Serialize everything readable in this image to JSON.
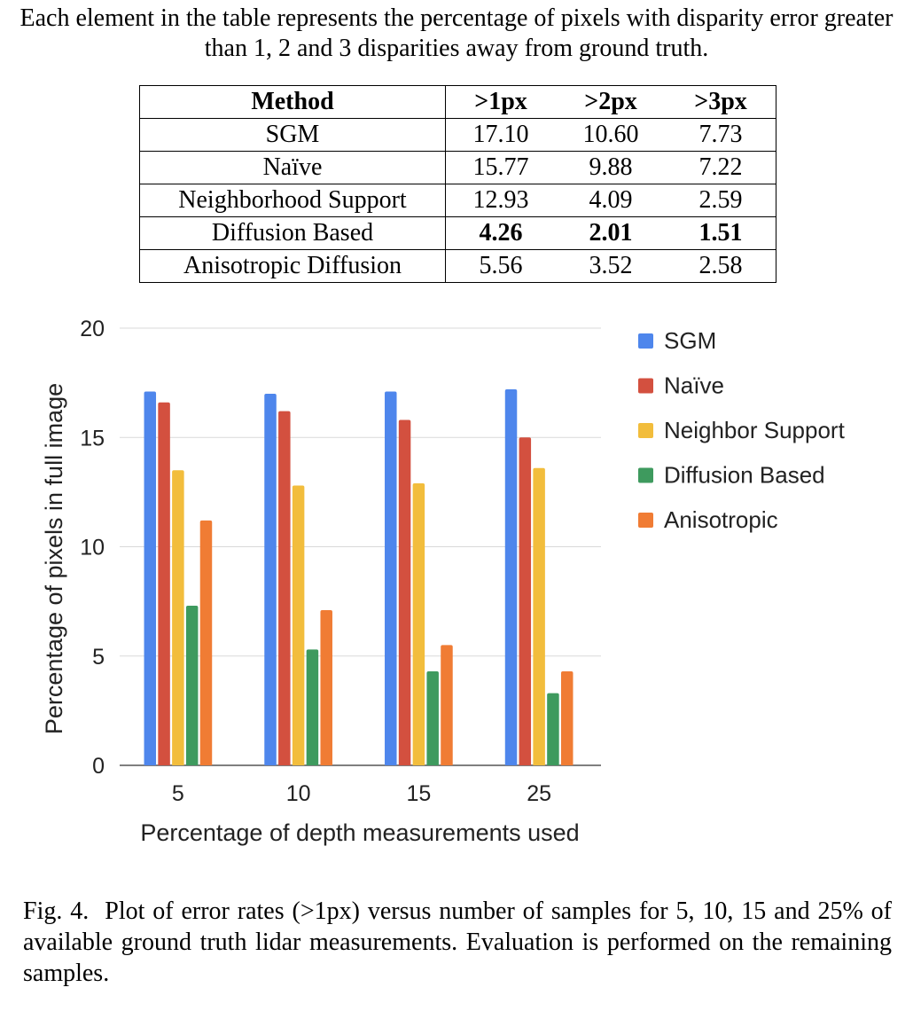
{
  "intro": "Each element in the table represents the percentage of pixels with disparity error greater than 1, 2 and 3 disparities away from ground truth.",
  "table": {
    "headers": [
      "Method",
      ">1px",
      ">2px",
      ">3px"
    ],
    "rows": [
      {
        "method": "SGM",
        "v1": "17.10",
        "v2": "10.60",
        "v3": "7.73",
        "bold": false
      },
      {
        "method": "Naïve",
        "v1": "15.77",
        "v2": "9.88",
        "v3": "7.22",
        "bold": false
      },
      {
        "method": "Neighborhood Support",
        "v1": "12.93",
        "v2": "4.09",
        "v3": "2.59",
        "bold": false
      },
      {
        "method": "Diffusion Based",
        "v1": "4.26",
        "v2": "2.01",
        "v3": "1.51",
        "bold": true
      },
      {
        "method": "Anisotropic Diffusion",
        "v1": "5.56",
        "v2": "3.52",
        "v3": "2.58",
        "bold": false
      }
    ]
  },
  "chart_data": {
    "type": "bar",
    "categories": [
      "5",
      "10",
      "15",
      "25"
    ],
    "series": [
      {
        "name": "SGM",
        "color": "#4e86ec",
        "values": [
          17.1,
          17.0,
          17.1,
          17.2
        ]
      },
      {
        "name": "Naïve",
        "color": "#d3503f",
        "values": [
          16.6,
          16.2,
          15.8,
          15.0
        ]
      },
      {
        "name": "Neighbor Support",
        "color": "#f2bd3c",
        "values": [
          13.5,
          12.8,
          12.9,
          13.6
        ]
      },
      {
        "name": "Diffusion Based",
        "color": "#3e9a5e",
        "values": [
          7.3,
          5.3,
          4.3,
          3.3
        ]
      },
      {
        "name": "Anisotropic",
        "color": "#f07c34",
        "values": [
          11.2,
          7.1,
          5.5,
          4.3
        ]
      }
    ],
    "xlabel": "Percentage of depth measurements used",
    "ylabel": "Percentage of pixels in full image",
    "ylim": [
      0,
      20
    ],
    "yticks": [
      0,
      5,
      10,
      15,
      20
    ],
    "grid": true,
    "legend_position": "right"
  },
  "caption": {
    "label": "Fig. 4.",
    "text": "Plot of error rates (>1px) versus number of samples for 5, 10, 15 and 25% of available ground truth lidar measurements. Evaluation is performed on the remaining samples."
  }
}
